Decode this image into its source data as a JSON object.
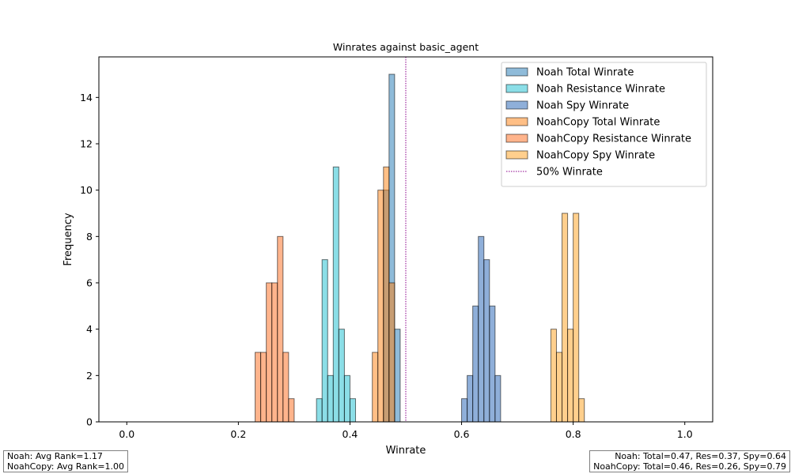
{
  "chart_data": {
    "type": "histogram",
    "title": "Winrates against basic_agent",
    "xlabel": "Winrate",
    "ylabel": "Frequency",
    "xlim": [
      -0.05,
      1.05
    ],
    "ylim": [
      0,
      15.75
    ],
    "xticks": [
      "0.0",
      "0.2",
      "0.4",
      "0.6",
      "0.8",
      "1.0"
    ],
    "yticks": [
      "0",
      "2",
      "4",
      "6",
      "8",
      "10",
      "12",
      "14"
    ],
    "bin_width": 0.01,
    "grid": false,
    "legend_position": "top-right",
    "series": [
      {
        "name": "Noah Total Winrate",
        "color": "#1f77b4",
        "bins": [
          [
            0.46,
            10
          ],
          [
            0.47,
            15
          ],
          [
            0.48,
            4
          ]
        ]
      },
      {
        "name": "Noah Resistance Winrate",
        "color": "#17becf",
        "bins": [
          [
            0.34,
            1
          ],
          [
            0.35,
            7
          ],
          [
            0.36,
            2
          ],
          [
            0.37,
            11
          ],
          [
            0.38,
            4
          ],
          [
            0.39,
            2
          ],
          [
            0.4,
            1
          ]
        ]
      },
      {
        "name": "Noah Spy Winrate",
        "color": "#1f5fb4",
        "bins": [
          [
            0.6,
            1
          ],
          [
            0.61,
            2
          ],
          [
            0.62,
            5
          ],
          [
            0.63,
            8
          ],
          [
            0.64,
            7
          ],
          [
            0.65,
            5
          ],
          [
            0.66,
            2
          ]
        ]
      },
      {
        "name": "NoahCopy Total Winrate",
        "color": "#ff7f0e",
        "bins": [
          [
            0.44,
            3
          ],
          [
            0.45,
            10
          ],
          [
            0.46,
            11
          ],
          [
            0.47,
            6
          ]
        ]
      },
      {
        "name": "NoahCopy Resistance Winrate",
        "color": "#ff6a1a",
        "bins": [
          [
            0.23,
            3
          ],
          [
            0.24,
            3
          ],
          [
            0.25,
            6
          ],
          [
            0.26,
            6
          ],
          [
            0.27,
            8
          ],
          [
            0.28,
            3
          ],
          [
            0.29,
            1
          ]
        ]
      },
      {
        "name": "NoahCopy Spy Winrate",
        "color": "#ff9f1c",
        "bins": [
          [
            0.76,
            4
          ],
          [
            0.77,
            3
          ],
          [
            0.78,
            9
          ],
          [
            0.79,
            4
          ],
          [
            0.8,
            9
          ],
          [
            0.81,
            1
          ]
        ]
      }
    ],
    "reference_line": {
      "name": "50% Winrate",
      "x": 0.5,
      "color": "#8b008b",
      "style": "dotted"
    },
    "zero_baseline": {
      "x_start": 0.0,
      "x_end": 1.0
    }
  },
  "notes": {
    "left": [
      "Noah: Avg Rank=1.17",
      "NoahCopy: Avg Rank=1.00"
    ],
    "right": [
      "Noah: Total=0.47, Res=0.37, Spy=0.64",
      "NoahCopy: Total=0.46, Res=0.26, Spy=0.79"
    ]
  }
}
